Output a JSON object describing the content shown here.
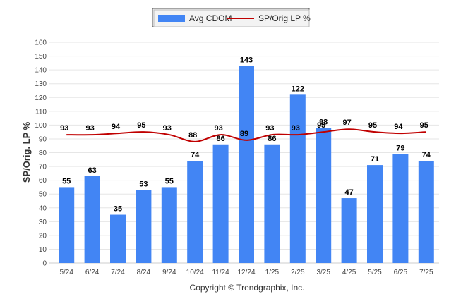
{
  "chart_data": {
    "type": "bar",
    "categories": [
      "5/24",
      "6/24",
      "7/24",
      "8/24",
      "9/24",
      "10/24",
      "11/24",
      "12/24",
      "1/25",
      "2/25",
      "3/25",
      "4/25",
      "5/25",
      "6/25",
      "7/25"
    ],
    "series": [
      {
        "name": "Avg CDOM",
        "type": "bar",
        "color": "#4285f4",
        "values": [
          55,
          63,
          35,
          53,
          55,
          74,
          86,
          143,
          86,
          122,
          98,
          47,
          71,
          79,
          74
        ]
      },
      {
        "name": "SP/Orig LP %",
        "type": "line",
        "color": "#c00000",
        "values": [
          93,
          93,
          94,
          95,
          93,
          88,
          93,
          89,
          93,
          93,
          95,
          97,
          95,
          94,
          95
        ]
      }
    ],
    "ylabel": "SP/Orig. LP %",
    "ylim": [
      0,
      160
    ],
    "yticks": [
      "0",
      "10",
      "20",
      "30",
      "40",
      "50",
      "60",
      "70",
      "80",
      "90",
      "100",
      "110",
      "120",
      "130",
      "140",
      "150",
      "160"
    ],
    "grid": true,
    "legend_position": "top-center",
    "footer": "Copyright © Trendgraphix, Inc."
  }
}
